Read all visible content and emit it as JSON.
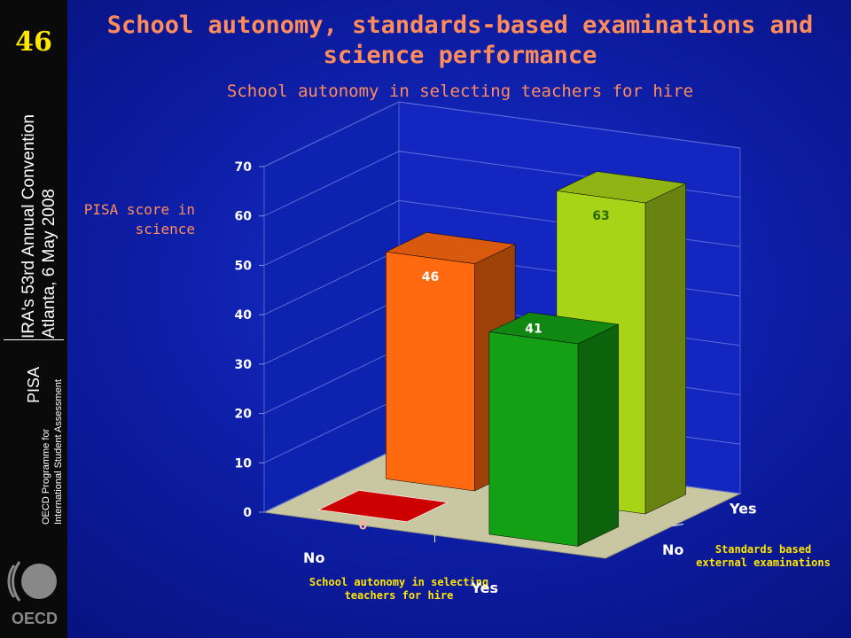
{
  "slide": {
    "number": "46",
    "convention_line1": "IRA's 53rd Annual Convention",
    "convention_line2": "Atlanta, 6 May 2008",
    "pisa": "PISA",
    "oecd_line1": "OECD Programme for",
    "oecd_line2": "International Student Assessment",
    "logo_text": "OECD"
  },
  "chart_data": {
    "type": "bar",
    "title": "School autonomy, standards-based examinations and science performance",
    "subtitle": "School autonomy in selecting teachers for hire",
    "ylabel": "PISA score in science",
    "xlabel": "School autonomy in selecting teachers for hire",
    "zlabel": "Standards based external examinations",
    "categories": [
      "No",
      "Yes"
    ],
    "series": [
      {
        "name": "No",
        "values": [
          0,
          41
        ]
      },
      {
        "name": "Yes",
        "values": [
          46,
          63
        ]
      }
    ],
    "ylim": [
      0,
      70
    ],
    "yticks": [
      0,
      10,
      20,
      30,
      40,
      50,
      60,
      70
    ],
    "grid": true,
    "colors": {
      "no_no": "#cc0000",
      "no_yes": "#ff6a10",
      "yes_no": "#14a014",
      "yes_yes": "#a8d418"
    }
  }
}
